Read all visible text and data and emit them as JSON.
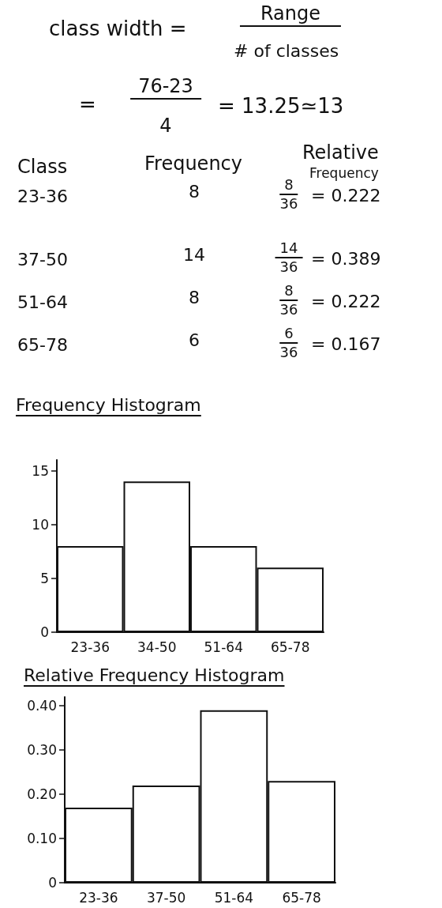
{
  "chart_data": [
    {
      "type": "other",
      "annotations": [
        "class width =",
        "Range",
        "# of classes",
        "=",
        "76-23",
        "4",
        "= 13.25≃13",
        "Class",
        "Frequency",
        "Relative",
        "Frequency",
        "23-36",
        "8",
        "8",
        "36",
        "= 0.222",
        "37-50",
        "14",
        "14",
        "36",
        "= 0.389",
        "51-64",
        "8",
        "8",
        "36",
        "= 0.222",
        "65-78",
        "6",
        "6",
        "36",
        "= 0.167"
      ]
    },
    {
      "type": "bar",
      "title": "Frequency Histogram",
      "categories": [
        "23-36",
        "34-50",
        "51-64",
        "65-78"
      ],
      "values": [
        8,
        14,
        8,
        6
      ],
      "color": "#ffffff",
      "ylim": [
        0,
        16
      ],
      "yticks": [
        0,
        5,
        10,
        15
      ]
    },
    {
      "type": "bar",
      "title": "Relative Frequency Histogram",
      "categories": [
        "23-36",
        "37-50",
        "51-64",
        "65-78"
      ],
      "values": [
        0.17,
        0.22,
        0.39,
        0.23
      ],
      "color": "#ffffff",
      "ylim": [
        0,
        0.42
      ],
      "yticks": [
        0,
        {
          "value": 0.1,
          "label": "0.10"
        },
        {
          "value": 0.2,
          "label": "0.20"
        },
        {
          "value": 0.3,
          "label": "0.30"
        },
        {
          "value": 0.4,
          "label": "0.40"
        }
      ]
    }
  ]
}
